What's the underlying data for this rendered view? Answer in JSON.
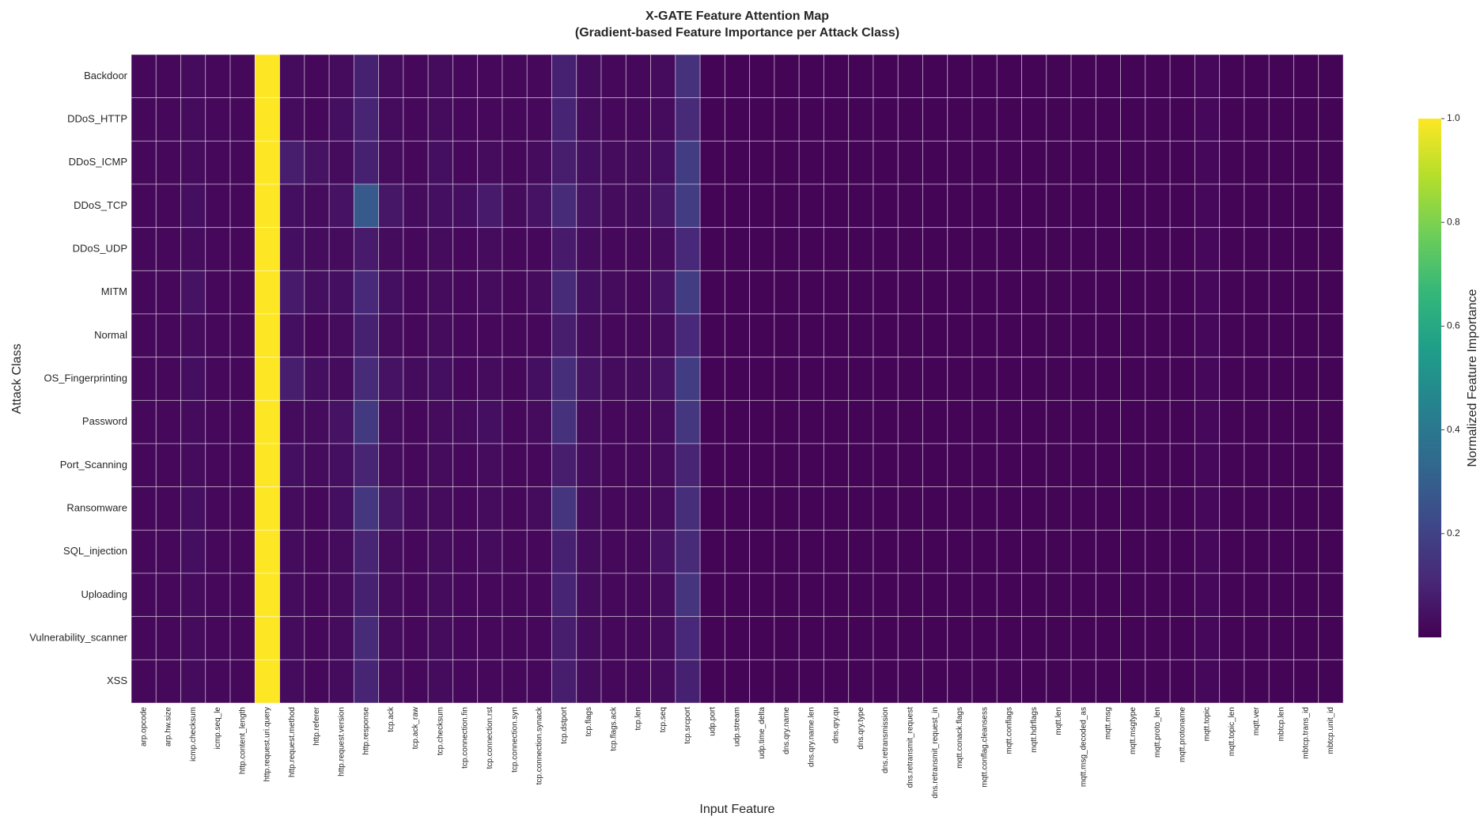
{
  "chart_data": {
    "type": "heatmap",
    "title": "X-GATE Feature Attention Map",
    "subtitle": "(Gradient-based Feature Importance per Attack Class)",
    "x_label": "Input Feature",
    "y_label": "Attack Class",
    "colorbar_label": "Normalized Feature Importance",
    "colormap": "viridis",
    "zlim": [
      0,
      1
    ],
    "zticks": [
      0.2,
      0.4,
      0.6,
      0.8,
      {
        "value": 1,
        "label": "1.0"
      }
    ],
    "categories": [
      "arp.opcode",
      "arp.hw.size",
      "icmp.checksum",
      "icmp.seq_le",
      "http.content_length",
      "http.request.uri.query",
      "http.request.method",
      "http.referer",
      "http.request.version",
      "http.response",
      "tcp.ack",
      "tcp.ack_raw",
      "tcp.checksum",
      "tcp.connection.fin",
      "tcp.connection.rst",
      "tcp.connection.syn",
      "tcp.connection.synack",
      "tcp.dstport",
      "tcp.flags",
      "tcp.flags.ack",
      "tcp.len",
      "tcp.seq",
      "tcp.srcport",
      "udp.port",
      "udp.stream",
      "udp.time_delta",
      "dns.qry.name",
      "dns.qry.name.len",
      "dns.qry.qu",
      "dns.qry.type",
      "dns.retransmission",
      "dns.retransmit_request",
      "dns.retransmit_request_in",
      "mqtt.conack.flags",
      "mqtt.conflag.cleansess",
      "mqtt.conflags",
      "mqtt.hdrflags",
      "mqtt.len",
      "mqtt.msg_decoded_as",
      "mqtt.msg",
      "mqtt.msgtype",
      "mqtt.proto_len",
      "mqtt.protoname",
      "mqtt.topic",
      "mqtt.topic_len",
      "mqtt.ver",
      "mbtcp.len",
      "mbtcp.trans_id",
      "mbtcp.unit_id"
    ],
    "rows": [
      "Backdoor",
      "DDoS_HTTP",
      "DDoS_ICMP",
      "DDoS_TCP",
      "DDoS_UDP",
      "MITM",
      "Normal",
      "OS_Fingerprinting",
      "Password",
      "Port_Scanning",
      "Ransomware",
      "SQL_injection",
      "Uploading",
      "Vulnerability_scanner",
      "XSS"
    ],
    "values": [
      [
        0.02,
        0.02,
        0.03,
        0.02,
        0.02,
        1.0,
        0.03,
        0.02,
        0.03,
        0.09,
        0.03,
        0.02,
        0.03,
        0.02,
        0.02,
        0.02,
        0.02,
        0.09,
        0.03,
        0.02,
        0.02,
        0.03,
        0.14,
        0.01,
        0.01,
        0.01,
        0.01,
        0.01,
        0.01,
        0.01,
        0.01,
        0.01,
        0.01,
        0.01,
        0.01,
        0.01,
        0.01,
        0.01,
        0.01,
        0.01,
        0.01,
        0.01,
        0.01,
        0.02,
        0.01,
        0.01,
        0.01,
        0.01,
        0.01
      ],
      [
        0.02,
        0.02,
        0.03,
        0.02,
        0.02,
        1.0,
        0.03,
        0.02,
        0.04,
        0.1,
        0.03,
        0.02,
        0.03,
        0.02,
        0.02,
        0.02,
        0.02,
        0.1,
        0.03,
        0.02,
        0.02,
        0.03,
        0.12,
        0.01,
        0.01,
        0.01,
        0.01,
        0.01,
        0.01,
        0.01,
        0.01,
        0.01,
        0.01,
        0.01,
        0.01,
        0.01,
        0.01,
        0.01,
        0.01,
        0.01,
        0.01,
        0.01,
        0.01,
        0.02,
        0.01,
        0.01,
        0.01,
        0.01,
        0.01
      ],
      [
        0.02,
        0.02,
        0.03,
        0.02,
        0.02,
        1.0,
        0.08,
        0.05,
        0.03,
        0.09,
        0.03,
        0.02,
        0.04,
        0.02,
        0.03,
        0.02,
        0.03,
        0.08,
        0.04,
        0.03,
        0.03,
        0.04,
        0.18,
        0.01,
        0.01,
        0.01,
        0.01,
        0.01,
        0.01,
        0.01,
        0.01,
        0.01,
        0.01,
        0.01,
        0.01,
        0.01,
        0.01,
        0.01,
        0.01,
        0.01,
        0.01,
        0.01,
        0.01,
        0.02,
        0.01,
        0.01,
        0.01,
        0.01,
        0.01
      ],
      [
        0.02,
        0.02,
        0.04,
        0.02,
        0.02,
        1.0,
        0.04,
        0.03,
        0.05,
        0.28,
        0.06,
        0.03,
        0.04,
        0.04,
        0.07,
        0.03,
        0.05,
        0.12,
        0.05,
        0.03,
        0.03,
        0.06,
        0.18,
        0.01,
        0.01,
        0.01,
        0.01,
        0.01,
        0.01,
        0.01,
        0.01,
        0.01,
        0.01,
        0.01,
        0.01,
        0.01,
        0.01,
        0.01,
        0.01,
        0.01,
        0.01,
        0.01,
        0.01,
        0.02,
        0.01,
        0.01,
        0.01,
        0.01,
        0.01
      ],
      [
        0.02,
        0.02,
        0.03,
        0.02,
        0.02,
        1.0,
        0.04,
        0.03,
        0.03,
        0.07,
        0.03,
        0.02,
        0.03,
        0.02,
        0.03,
        0.02,
        0.02,
        0.07,
        0.03,
        0.02,
        0.02,
        0.03,
        0.11,
        0.01,
        0.01,
        0.01,
        0.01,
        0.01,
        0.01,
        0.01,
        0.01,
        0.01,
        0.01,
        0.01,
        0.01,
        0.01,
        0.01,
        0.01,
        0.01,
        0.01,
        0.01,
        0.01,
        0.01,
        0.02,
        0.01,
        0.01,
        0.01,
        0.01,
        0.01
      ],
      [
        0.02,
        0.02,
        0.05,
        0.02,
        0.02,
        1.0,
        0.07,
        0.04,
        0.04,
        0.11,
        0.04,
        0.02,
        0.03,
        0.02,
        0.03,
        0.02,
        0.03,
        0.12,
        0.04,
        0.03,
        0.02,
        0.05,
        0.18,
        0.01,
        0.01,
        0.01,
        0.01,
        0.01,
        0.01,
        0.01,
        0.01,
        0.01,
        0.01,
        0.01,
        0.01,
        0.01,
        0.01,
        0.01,
        0.01,
        0.01,
        0.01,
        0.01,
        0.01,
        0.02,
        0.01,
        0.01,
        0.01,
        0.01,
        0.01
      ],
      [
        0.02,
        0.02,
        0.03,
        0.02,
        0.02,
        1.0,
        0.04,
        0.02,
        0.03,
        0.09,
        0.03,
        0.02,
        0.03,
        0.02,
        0.02,
        0.02,
        0.02,
        0.08,
        0.03,
        0.02,
        0.02,
        0.03,
        0.11,
        0.01,
        0.01,
        0.01,
        0.01,
        0.01,
        0.01,
        0.01,
        0.01,
        0.01,
        0.01,
        0.01,
        0.01,
        0.01,
        0.01,
        0.01,
        0.01,
        0.01,
        0.01,
        0.01,
        0.01,
        0.02,
        0.01,
        0.01,
        0.01,
        0.01,
        0.01
      ],
      [
        0.02,
        0.02,
        0.04,
        0.02,
        0.02,
        1.0,
        0.08,
        0.04,
        0.03,
        0.12,
        0.05,
        0.03,
        0.04,
        0.02,
        0.03,
        0.02,
        0.04,
        0.13,
        0.05,
        0.03,
        0.03,
        0.05,
        0.18,
        0.01,
        0.01,
        0.01,
        0.01,
        0.01,
        0.01,
        0.01,
        0.01,
        0.01,
        0.01,
        0.01,
        0.01,
        0.01,
        0.01,
        0.01,
        0.01,
        0.01,
        0.01,
        0.01,
        0.01,
        0.02,
        0.01,
        0.01,
        0.01,
        0.01,
        0.01
      ],
      [
        0.02,
        0.02,
        0.03,
        0.02,
        0.02,
        1.0,
        0.03,
        0.03,
        0.05,
        0.17,
        0.03,
        0.02,
        0.03,
        0.03,
        0.04,
        0.02,
        0.03,
        0.14,
        0.03,
        0.02,
        0.02,
        0.03,
        0.16,
        0.01,
        0.01,
        0.01,
        0.01,
        0.01,
        0.01,
        0.01,
        0.01,
        0.01,
        0.01,
        0.01,
        0.01,
        0.01,
        0.01,
        0.01,
        0.01,
        0.01,
        0.01,
        0.01,
        0.01,
        0.02,
        0.01,
        0.01,
        0.01,
        0.01,
        0.01
      ],
      [
        0.02,
        0.02,
        0.03,
        0.02,
        0.02,
        1.0,
        0.04,
        0.03,
        0.04,
        0.1,
        0.03,
        0.02,
        0.03,
        0.02,
        0.03,
        0.02,
        0.02,
        0.08,
        0.03,
        0.02,
        0.02,
        0.03,
        0.1,
        0.01,
        0.01,
        0.01,
        0.01,
        0.01,
        0.01,
        0.01,
        0.01,
        0.01,
        0.01,
        0.01,
        0.01,
        0.01,
        0.01,
        0.01,
        0.01,
        0.01,
        0.01,
        0.01,
        0.01,
        0.02,
        0.01,
        0.01,
        0.01,
        0.01,
        0.01
      ],
      [
        0.02,
        0.02,
        0.04,
        0.02,
        0.02,
        1.0,
        0.03,
        0.02,
        0.04,
        0.16,
        0.06,
        0.03,
        0.03,
        0.02,
        0.03,
        0.02,
        0.03,
        0.15,
        0.03,
        0.02,
        0.02,
        0.03,
        0.13,
        0.01,
        0.01,
        0.01,
        0.01,
        0.01,
        0.01,
        0.01,
        0.01,
        0.01,
        0.01,
        0.01,
        0.01,
        0.01,
        0.01,
        0.01,
        0.01,
        0.01,
        0.01,
        0.01,
        0.01,
        0.02,
        0.01,
        0.01,
        0.01,
        0.01,
        0.01
      ],
      [
        0.02,
        0.02,
        0.04,
        0.02,
        0.02,
        1.0,
        0.03,
        0.02,
        0.03,
        0.1,
        0.03,
        0.02,
        0.03,
        0.02,
        0.03,
        0.02,
        0.02,
        0.09,
        0.03,
        0.02,
        0.02,
        0.05,
        0.12,
        0.01,
        0.01,
        0.01,
        0.01,
        0.01,
        0.01,
        0.01,
        0.01,
        0.01,
        0.01,
        0.01,
        0.01,
        0.01,
        0.01,
        0.01,
        0.01,
        0.01,
        0.01,
        0.01,
        0.01,
        0.02,
        0.01,
        0.01,
        0.01,
        0.01,
        0.01
      ],
      [
        0.02,
        0.02,
        0.03,
        0.02,
        0.02,
        1.0,
        0.03,
        0.02,
        0.03,
        0.09,
        0.03,
        0.02,
        0.03,
        0.02,
        0.02,
        0.02,
        0.02,
        0.1,
        0.03,
        0.02,
        0.02,
        0.03,
        0.15,
        0.01,
        0.01,
        0.01,
        0.01,
        0.01,
        0.01,
        0.01,
        0.01,
        0.01,
        0.01,
        0.01,
        0.01,
        0.01,
        0.01,
        0.01,
        0.01,
        0.01,
        0.01,
        0.01,
        0.01,
        0.02,
        0.01,
        0.01,
        0.01,
        0.01,
        0.01
      ],
      [
        0.02,
        0.02,
        0.03,
        0.02,
        0.02,
        1.0,
        0.03,
        0.02,
        0.03,
        0.12,
        0.03,
        0.02,
        0.03,
        0.02,
        0.02,
        0.02,
        0.02,
        0.08,
        0.03,
        0.02,
        0.02,
        0.03,
        0.11,
        0.01,
        0.01,
        0.01,
        0.01,
        0.01,
        0.01,
        0.01,
        0.01,
        0.01,
        0.01,
        0.01,
        0.01,
        0.01,
        0.01,
        0.01,
        0.01,
        0.01,
        0.01,
        0.01,
        0.01,
        0.02,
        0.01,
        0.01,
        0.01,
        0.01,
        0.01
      ],
      [
        0.02,
        0.02,
        0.03,
        0.02,
        0.02,
        1.0,
        0.03,
        0.02,
        0.03,
        0.1,
        0.03,
        0.02,
        0.03,
        0.02,
        0.02,
        0.02,
        0.02,
        0.08,
        0.03,
        0.02,
        0.02,
        0.03,
        0.09,
        0.01,
        0.01,
        0.01,
        0.01,
        0.01,
        0.01,
        0.01,
        0.01,
        0.01,
        0.01,
        0.01,
        0.01,
        0.01,
        0.01,
        0.01,
        0.01,
        0.01,
        0.01,
        0.01,
        0.01,
        0.02,
        0.01,
        0.01,
        0.01,
        0.01,
        0.01
      ]
    ]
  }
}
